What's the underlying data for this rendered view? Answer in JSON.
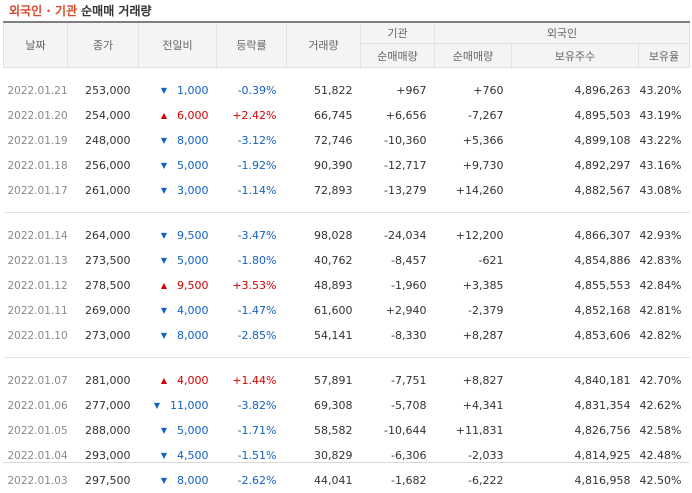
{
  "header": {
    "title_part1": "외국인 · 기관",
    "title_part2": "순매매 거래량"
  },
  "columns": {
    "date": "날짜",
    "close": "종가",
    "change": "전일비",
    "rate": "등락률",
    "volume": "거래량",
    "institution": "기관",
    "inst_net": "순매매량",
    "foreign": "외국인",
    "foreign_net": "순매매량",
    "holdings": "보유주수",
    "holding_rate": "보유율"
  },
  "colors": {
    "up": "#d60000",
    "down": "#1261c4",
    "title_accent": "#d9492c"
  },
  "groups": [
    {
      "rows": [
        {
          "date": "2022.01.21",
          "close": "253,000",
          "dir": "down",
          "change": "1,000",
          "rate": "-0.39%",
          "volume": "51,822",
          "inst_net": "+967",
          "foreign_net": "+760",
          "holdings": "4,896,263",
          "holding_rate": "43.20%"
        },
        {
          "date": "2022.01.20",
          "close": "254,000",
          "dir": "up",
          "change": "6,000",
          "rate": "+2.42%",
          "volume": "66,745",
          "inst_net": "+6,656",
          "foreign_net": "-7,267",
          "holdings": "4,895,503",
          "holding_rate": "43.19%"
        },
        {
          "date": "2022.01.19",
          "close": "248,000",
          "dir": "down",
          "change": "8,000",
          "rate": "-3.12%",
          "volume": "72,746",
          "inst_net": "-10,360",
          "foreign_net": "+5,366",
          "holdings": "4,899,108",
          "holding_rate": "43.22%"
        },
        {
          "date": "2022.01.18",
          "close": "256,000",
          "dir": "down",
          "change": "5,000",
          "rate": "-1.92%",
          "volume": "90,390",
          "inst_net": "-12,717",
          "foreign_net": "+9,730",
          "holdings": "4,892,297",
          "holding_rate": "43.16%"
        },
        {
          "date": "2022.01.17",
          "close": "261,000",
          "dir": "down",
          "change": "3,000",
          "rate": "-1.14%",
          "volume": "72,893",
          "inst_net": "-13,279",
          "foreign_net": "+14,260",
          "holdings": "4,882,567",
          "holding_rate": "43.08%"
        }
      ]
    },
    {
      "rows": [
        {
          "date": "2022.01.14",
          "close": "264,000",
          "dir": "down",
          "change": "9,500",
          "rate": "-3.47%",
          "volume": "98,028",
          "inst_net": "-24,034",
          "foreign_net": "+12,200",
          "holdings": "4,866,307",
          "holding_rate": "42.93%"
        },
        {
          "date": "2022.01.13",
          "close": "273,500",
          "dir": "down",
          "change": "5,000",
          "rate": "-1.80%",
          "volume": "40,762",
          "inst_net": "-8,457",
          "foreign_net": "-621",
          "holdings": "4,854,886",
          "holding_rate": "42.83%"
        },
        {
          "date": "2022.01.12",
          "close": "278,500",
          "dir": "up",
          "change": "9,500",
          "rate": "+3.53%",
          "volume": "48,893",
          "inst_net": "-1,960",
          "foreign_net": "+3,385",
          "holdings": "4,855,553",
          "holding_rate": "42.84%"
        },
        {
          "date": "2022.01.11",
          "close": "269,000",
          "dir": "down",
          "change": "4,000",
          "rate": "-1.47%",
          "volume": "61,600",
          "inst_net": "+2,940",
          "foreign_net": "-2,379",
          "holdings": "4,852,168",
          "holding_rate": "42.81%"
        },
        {
          "date": "2022.01.10",
          "close": "273,000",
          "dir": "down",
          "change": "8,000",
          "rate": "-2.85%",
          "volume": "54,141",
          "inst_net": "-8,330",
          "foreign_net": "+8,287",
          "holdings": "4,853,606",
          "holding_rate": "42.82%"
        }
      ]
    },
    {
      "rows": [
        {
          "date": "2022.01.07",
          "close": "281,000",
          "dir": "up",
          "change": "4,000",
          "rate": "+1.44%",
          "volume": "57,891",
          "inst_net": "-7,751",
          "foreign_net": "+8,827",
          "holdings": "4,840,181",
          "holding_rate": "42.70%"
        },
        {
          "date": "2022.01.06",
          "close": "277,000",
          "dir": "down",
          "change": "11,000",
          "rate": "-3.82%",
          "volume": "69,308",
          "inst_net": "-5,708",
          "foreign_net": "+4,341",
          "holdings": "4,831,354",
          "holding_rate": "42.62%"
        },
        {
          "date": "2022.01.05",
          "close": "288,000",
          "dir": "down",
          "change": "5,000",
          "rate": "-1.71%",
          "volume": "58,582",
          "inst_net": "-10,644",
          "foreign_net": "+11,831",
          "holdings": "4,826,756",
          "holding_rate": "42.58%"
        },
        {
          "date": "2022.01.04",
          "close": "293,000",
          "dir": "down",
          "change": "4,500",
          "rate": "-1.51%",
          "volume": "30,829",
          "inst_net": "-6,306",
          "foreign_net": "-2,033",
          "holdings": "4,814,925",
          "holding_rate": "42.48%"
        },
        {
          "date": "2022.01.03",
          "close": "297,500",
          "dir": "down",
          "change": "8,000",
          "rate": "-2.62%",
          "volume": "44,041",
          "inst_net": "-1,682",
          "foreign_net": "-6,222",
          "holdings": "4,816,958",
          "holding_rate": "42.50%"
        }
      ]
    }
  ]
}
